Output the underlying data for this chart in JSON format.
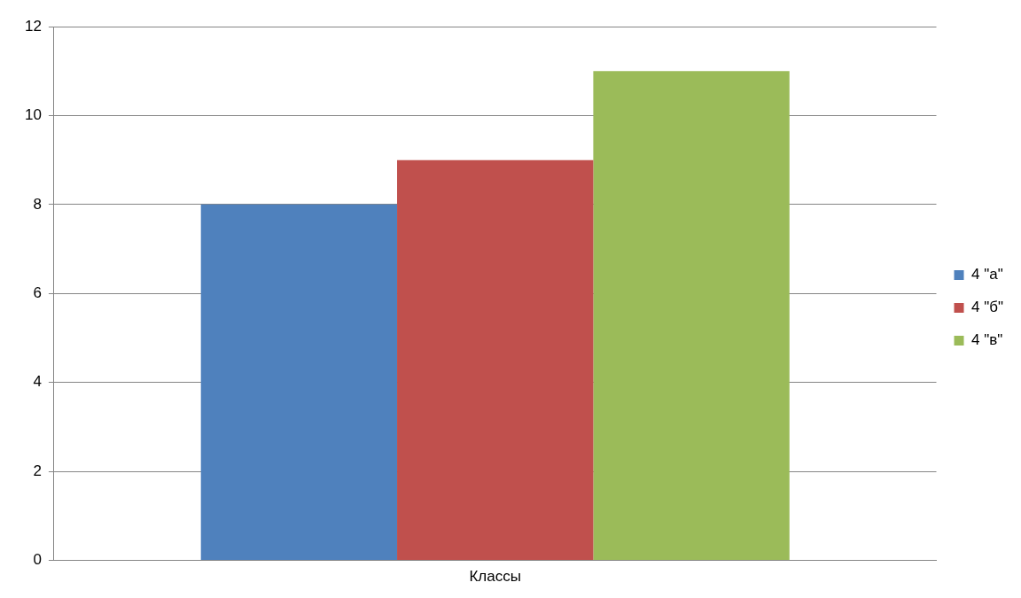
{
  "chart_data": {
    "type": "bar",
    "categories": [
      "Классы"
    ],
    "series": [
      {
        "name": "4 \"а\"",
        "color": "#4f81bd",
        "values": [
          8
        ]
      },
      {
        "name": "4 \"б\"",
        "color": "#c0504d",
        "values": [
          9
        ]
      },
      {
        "name": "4 \"в\"",
        "color": "#9bbb59",
        "values": [
          11
        ]
      }
    ],
    "ylim": [
      0,
      12
    ],
    "yticks": [
      0,
      2,
      4,
      6,
      8,
      10,
      12
    ],
    "grid": "y",
    "legend": "right"
  }
}
